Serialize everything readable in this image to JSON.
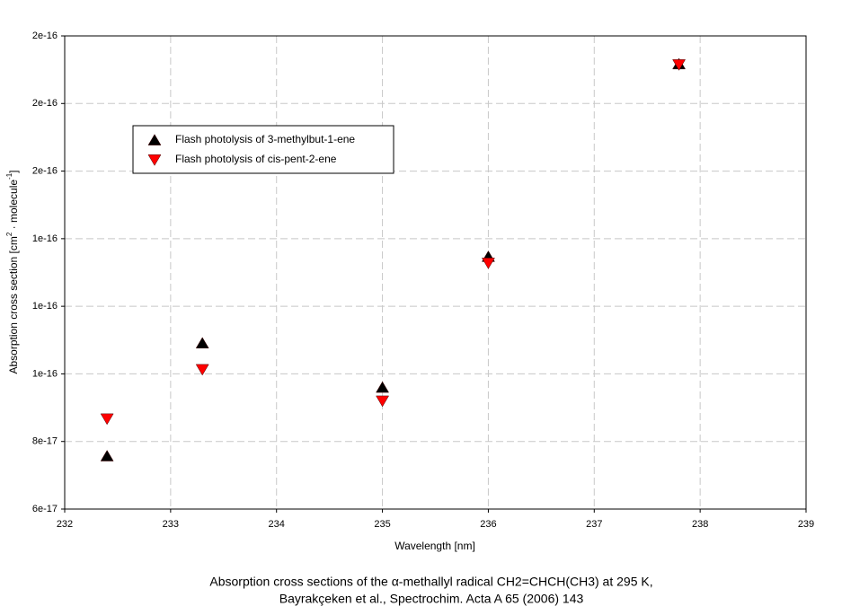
{
  "chart_data": {
    "type": "scatter",
    "xlabel": "Wavelength [nm]",
    "ylabel_parts": [
      "Absorption cross section [cm",
      "2",
      " · molecule",
      "-1",
      "]"
    ],
    "caption": [
      "Absorption cross sections of the α-methallyl radical CH2=CHCH(CH3) at 295 K,",
      "Bayrakçeken et al., Spectrochim. Acta A 65 (2006) 143"
    ],
    "xlim": [
      232,
      239
    ],
    "xticks": [
      232,
      233,
      234,
      235,
      236,
      237,
      238,
      239
    ],
    "ylim": [
      6e-17,
      2e-16
    ],
    "yticks": [
      {
        "value": 6e-17,
        "label": "6e-17"
      },
      {
        "value": 8e-17,
        "label": "8e-17"
      },
      {
        "value": 1e-16,
        "label": "1e-16"
      },
      {
        "value": 1.2e-16,
        "label": "1e-16"
      },
      {
        "value": 1.4e-16,
        "label": "1e-16"
      },
      {
        "value": 1.6e-16,
        "label": "2e-16"
      },
      {
        "value": 1.8e-16,
        "label": "2e-16"
      },
      {
        "value": 2e-16,
        "label": "2e-16"
      }
    ],
    "grid": true,
    "legend": "upper left",
    "series": [
      {
        "name": "Flash photolysis of 3-methylbut-1-ene",
        "color": "#000000",
        "marker": "triangle-up",
        "x": [
          232.4,
          233.3,
          235,
          236,
          237.8
        ],
        "values": [
          7.57e-17,
          1.091e-16,
          9.6e-17,
          1.347e-16,
          1.917e-16
        ]
      },
      {
        "name": "Flash photolysis of cis-pent-2-ene",
        "color": "#ff0000",
        "marker": "triangle-down",
        "x": [
          232.4,
          233.3,
          235,
          236,
          237.8
        ],
        "values": [
          8.67e-17,
          1.013e-16,
          9.2e-17,
          1.328e-16,
          1.915e-16
        ]
      }
    ]
  }
}
